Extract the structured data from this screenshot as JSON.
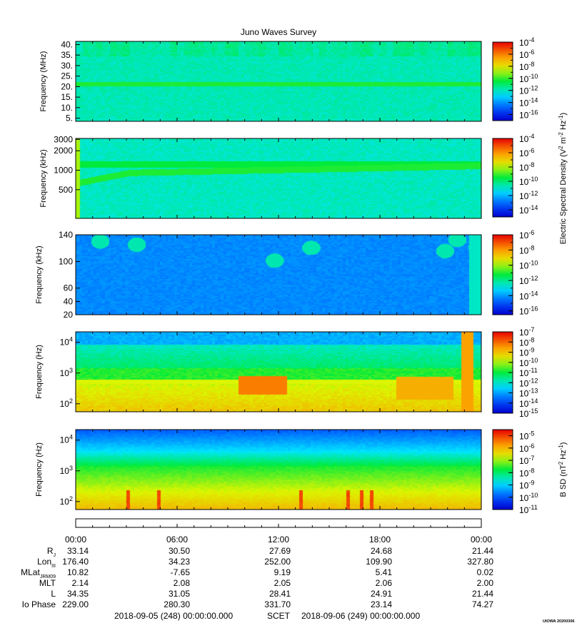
{
  "title": "Juno Waves Survey",
  "credit": "UIOWA 20200306",
  "chart_data": [
    {
      "type": "heatmap",
      "ylabel": "Frequency (MHz)",
      "yticks": [
        "40.",
        "35.",
        "30.",
        "25.",
        "20.",
        "15.",
        "10.",
        "5."
      ],
      "yvalues": [
        40,
        35,
        30,
        25,
        20,
        15,
        10,
        5
      ],
      "ylim": [
        3.5,
        41.5
      ],
      "colorbar": {
        "labels": [
          "10-4",
          "10-6",
          "10-8",
          "10-10",
          "10-12",
          "10-14",
          "10-16"
        ],
        "range_exp": [
          -17,
          -4
        ]
      },
      "features": [
        "continuous band near 21 MHz"
      ]
    },
    {
      "type": "heatmap",
      "ylabel": "Frequency (kHz)",
      "yticks": [
        "3000",
        "2000",
        "1000",
        "500"
      ],
      "yvalues": [
        3000,
        2000,
        1000,
        500
      ],
      "yscale": "log",
      "colorbar": {
        "labels": [
          "10-4",
          "10-6",
          "10-8",
          "10-10",
          "10-12",
          "10-14"
        ],
        "range_exp": [
          -15,
          -4
        ]
      },
      "features": [
        "band near 1400 kHz",
        "band rising from ~400 kHz to ~900 kHz"
      ]
    },
    {
      "type": "heatmap",
      "ylabel": "Frequency (kHz)",
      "yticks": [
        "140",
        "100",
        "60",
        "40",
        "20"
      ],
      "yvalues": [
        140,
        100,
        60,
        40,
        20
      ],
      "colorbar": {
        "labels": [
          "10-6",
          "10-8",
          "10-10",
          "10-12",
          "10-14",
          "10-16"
        ],
        "range_exp": [
          -16.5,
          -6
        ]
      }
    },
    {
      "type": "heatmap",
      "ylabel": "Frequency (Hz)",
      "yticks": [
        "104",
        "103",
        "102"
      ],
      "yvalues": [
        10000,
        1000,
        100
      ],
      "yscale": "log",
      "colorbar": {
        "labels": [
          "10-7",
          "10-8",
          "10-9",
          "10-10",
          "10-11",
          "10-12",
          "10-13",
          "10-14",
          "10-15"
        ],
        "range_exp": [
          -15,
          -7
        ]
      },
      "features": [
        "narrowband emission near 560 Hz"
      ]
    },
    {
      "type": "heatmap",
      "ylabel": "Frequency (Hz)",
      "yticks": [
        "104",
        "103",
        "102"
      ],
      "yvalues": [
        10000,
        1000,
        100
      ],
      "yscale": "log",
      "colorbar": {
        "labels": [
          "10-5",
          "10-6",
          "10-7",
          "10-8",
          "10-9",
          "10-10",
          "10-11"
        ],
        "range_exp": [
          -11,
          -4.5
        ]
      }
    }
  ],
  "colorbar_titles": {
    "electric": "Electric Spectral Density (V2 m-2 Hz-1)",
    "magnetic": "B SD (nT2 Hz-1)"
  },
  "xaxis": {
    "ticks": [
      "00:00",
      "06:00",
      "12:00",
      "18:00",
      "00:00"
    ],
    "hours": [
      0,
      6,
      12,
      18,
      24
    ]
  },
  "ephemeris": [
    {
      "label": "R",
      "sub": "J",
      "values": [
        "33.14",
        "30.50",
        "27.69",
        "24.68",
        "21.44"
      ]
    },
    {
      "label": "Lon",
      "sub": "III",
      "values": [
        "176.40",
        "34.23",
        "252.00",
        "109.90",
        "327.80"
      ]
    },
    {
      "label": "MLat",
      "sub": "JRM09",
      "values": [
        "10.82",
        "-7.65",
        "9.19",
        "5.41",
        "0.02"
      ]
    },
    {
      "label": "MLT",
      "sub": "",
      "values": [
        "2.14",
        "2.08",
        "2.05",
        "2.06",
        "2.00"
      ]
    },
    {
      "label": "L",
      "sub": "",
      "values": [
        "34.35",
        "31.05",
        "28.41",
        "24.91",
        "21.44"
      ]
    },
    {
      "label": "Io Phase",
      "sub": "",
      "values": [
        "229.00",
        "280.30",
        "331.70",
        "23.14",
        "74.27"
      ]
    }
  ],
  "footer": {
    "start": "2018-09-05 (248) 00:00:00.000",
    "scet": "SCET",
    "end": "2018-09-06 (249) 00:00:00.000"
  }
}
